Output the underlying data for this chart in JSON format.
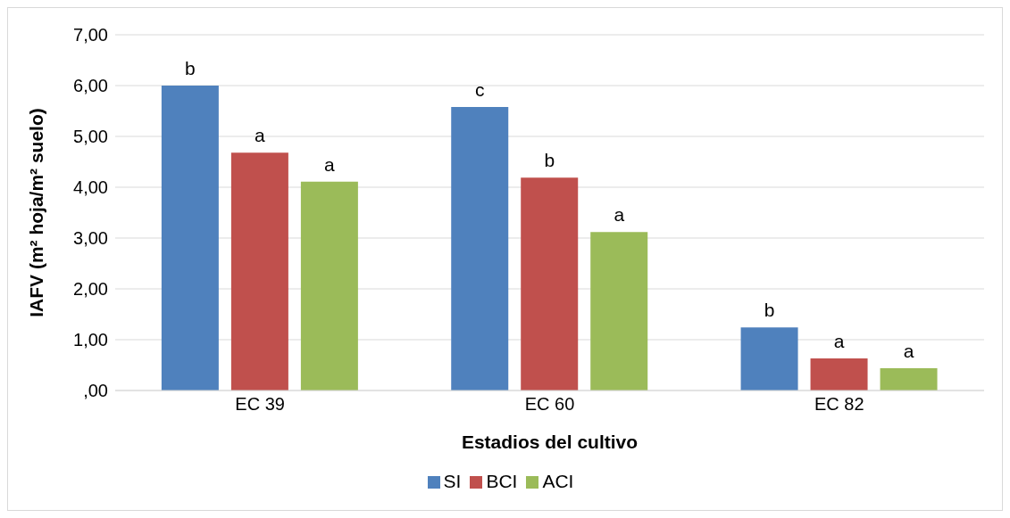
{
  "chart_data": {
    "type": "bar",
    "xlabel": "Estadios del cultivo",
    "ylabel": "IAFV (m² hoja/m² suelo)",
    "categories": [
      "EC 39",
      "EC 60",
      "EC 82"
    ],
    "series": [
      {
        "name": "SI",
        "color": "#4f81bd",
        "values": [
          6.0,
          5.58,
          1.24
        ],
        "value_labels": [
          "b",
          "c",
          "b"
        ]
      },
      {
        "name": "BCI",
        "color": "#c0504d",
        "values": [
          4.68,
          4.19,
          0.63
        ],
        "value_labels": [
          "a",
          "b",
          "a"
        ]
      },
      {
        "name": "ACI",
        "color": "#9bbb59",
        "values": [
          4.11,
          3.12,
          0.44
        ],
        "value_labels": [
          "a",
          "a",
          "a"
        ]
      }
    ],
    "ylim": [
      0,
      7
    ],
    "yticks": [
      {
        "value": 0,
        "label": ",00"
      },
      {
        "value": 1,
        "label": "1,00"
      },
      {
        "value": 2,
        "label": "2,00"
      },
      {
        "value": 3,
        "label": "3,00"
      },
      {
        "value": 4,
        "label": "4,00"
      },
      {
        "value": 5,
        "label": "5,00"
      },
      {
        "value": 6,
        "label": "6,00"
      },
      {
        "value": 7,
        "label": "7,00"
      }
    ],
    "grid": "y",
    "legend": "bottom"
  }
}
